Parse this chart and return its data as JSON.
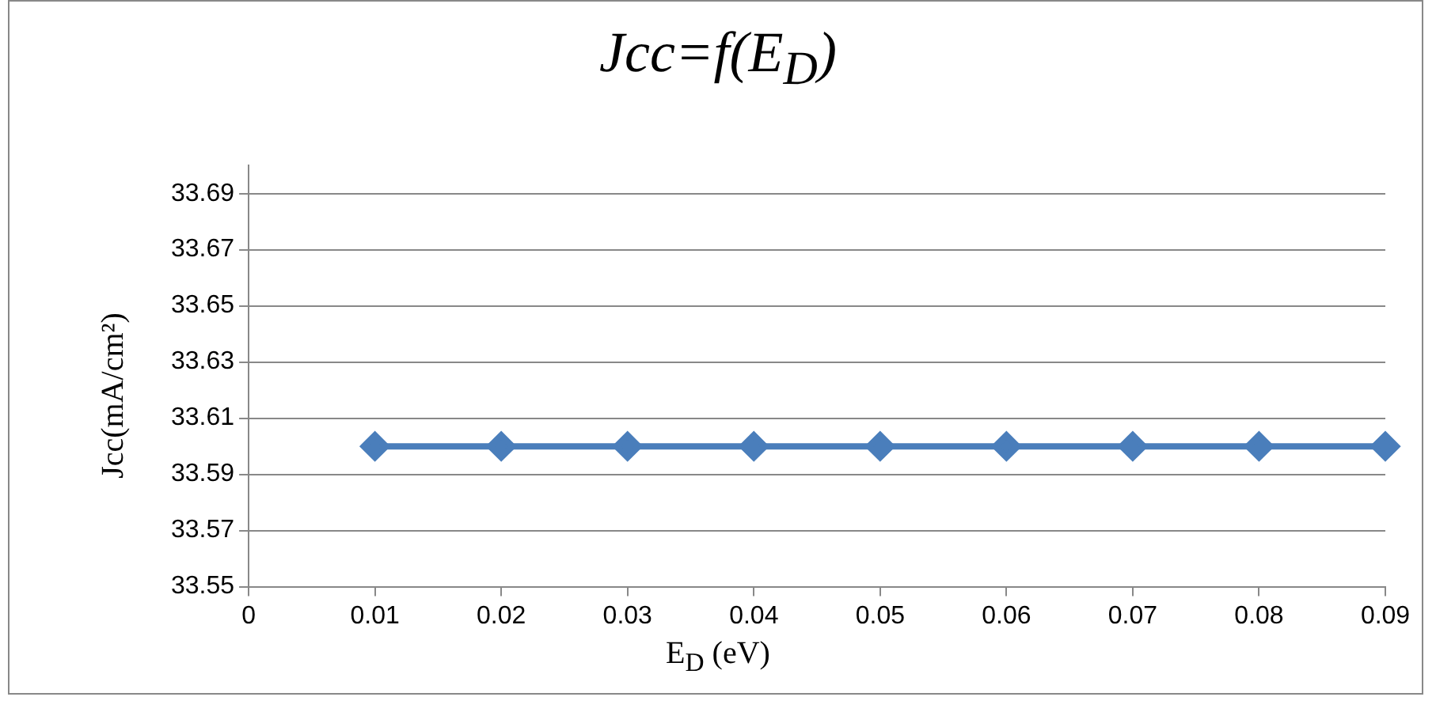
{
  "chart_data": {
    "type": "line",
    "title": "Jcc=f(E$_{D}$)",
    "xlabel": "E$_{D}$ (eV)",
    "ylabel": "Jcc(mA/cm²)",
    "x": [
      0.01,
      0.02,
      0.03,
      0.04,
      0.05,
      0.06,
      0.07,
      0.08,
      0.09
    ],
    "series": [
      {
        "color": "#4a7ebb",
        "values": [
          33.6,
          33.6,
          33.6,
          33.6,
          33.6,
          33.6,
          33.6,
          33.6,
          33.6
        ]
      }
    ],
    "xlim": [
      0,
      0.09
    ],
    "xticks": [
      0,
      0.01,
      0.02,
      0.03,
      0.04,
      0.05,
      0.06,
      0.07,
      0.08,
      0.09
    ],
    "ylim": [
      33.55,
      33.7
    ],
    "yticks": [
      33.55,
      33.57,
      33.59,
      33.61,
      33.63,
      33.65,
      33.67,
      33.69
    ],
    "grid": "y",
    "legend": false,
    "marker": "diamond",
    "line_style": "solid"
  }
}
